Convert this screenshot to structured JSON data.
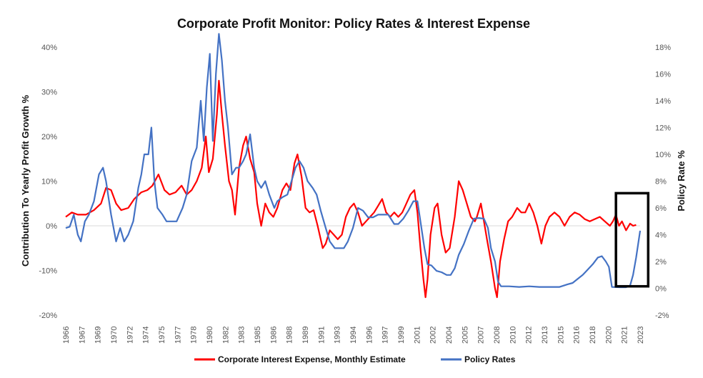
{
  "chart_data": {
    "type": "line",
    "title": "Corporate Profit Monitor: Policy Rates & Interest Expense",
    "ylabel_left": "Contribution To Yearly Profit Growth %",
    "ylabel_right": "Policy Rate %",
    "ylim_left": [
      -20,
      40
    ],
    "ylim_right": [
      -2,
      18
    ],
    "yticks_left": [
      "-20%",
      "-10%",
      "0%",
      "10%",
      "20%",
      "30%",
      "40%"
    ],
    "yticks_left_values": [
      -20,
      -10,
      0,
      10,
      20,
      30,
      40
    ],
    "yticks_right": [
      "-2%",
      "0%",
      "2%",
      "4%",
      "6%",
      "8%",
      "10%",
      "12%",
      "14%",
      "16%",
      "18%"
    ],
    "yticks_right_values": [
      -2,
      0,
      2,
      4,
      6,
      8,
      10,
      12,
      14,
      16,
      18
    ],
    "xlim": [
      1966,
      2023
    ],
    "xtick_labels": [
      "1966",
      "1967",
      "1969",
      "1970",
      "1972",
      "1974",
      "1975",
      "1977",
      "1978",
      "1980",
      "1982",
      "1983",
      "1985",
      "1986",
      "1988",
      "1989",
      "1991",
      "1993",
      "1994",
      "1996",
      "1997",
      "1999",
      "2001",
      "2002",
      "2004",
      "2005",
      "2007",
      "2008",
      "2010",
      "2012",
      "2013",
      "2015",
      "2016",
      "2018",
      "2020",
      "2021",
      "2023"
    ],
    "legend_position": "bottom",
    "grid": false,
    "series": [
      {
        "name": "Corporate Interest Expense, Monthly Estimate",
        "axis": "left",
        "color": "#ff0000",
        "points": [
          [
            1966.0,
            2
          ],
          [
            1966.6,
            3
          ],
          [
            1967.2,
            2.5
          ],
          [
            1968.0,
            2.5
          ],
          [
            1968.8,
            3.5
          ],
          [
            1969.5,
            5
          ],
          [
            1970.0,
            8.5
          ],
          [
            1970.5,
            8
          ],
          [
            1971.0,
            5
          ],
          [
            1971.5,
            3.5
          ],
          [
            1972.2,
            4
          ],
          [
            1972.8,
            6
          ],
          [
            1973.5,
            7.5
          ],
          [
            1974.1,
            8
          ],
          [
            1974.6,
            9
          ],
          [
            1975.2,
            11.5
          ],
          [
            1975.8,
            8
          ],
          [
            1976.3,
            7
          ],
          [
            1976.9,
            7.5
          ],
          [
            1977.5,
            9
          ],
          [
            1978.0,
            7
          ],
          [
            1978.5,
            8
          ],
          [
            1979.0,
            10
          ],
          [
            1979.5,
            13
          ],
          [
            1979.9,
            20
          ],
          [
            1980.2,
            12
          ],
          [
            1980.6,
            15
          ],
          [
            1981.0,
            25
          ],
          [
            1981.2,
            32.5
          ],
          [
            1981.5,
            25
          ],
          [
            1981.8,
            18
          ],
          [
            1982.2,
            10
          ],
          [
            1982.5,
            8
          ],
          [
            1982.8,
            2.5
          ],
          [
            1983.2,
            13
          ],
          [
            1983.6,
            18
          ],
          [
            1983.9,
            20
          ],
          [
            1984.3,
            15
          ],
          [
            1984.7,
            12
          ],
          [
            1985.0,
            5
          ],
          [
            1985.4,
            0
          ],
          [
            1985.8,
            5
          ],
          [
            1986.2,
            3
          ],
          [
            1986.6,
            2
          ],
          [
            1987.0,
            4
          ],
          [
            1987.5,
            8
          ],
          [
            1987.9,
            9.5
          ],
          [
            1988.3,
            8
          ],
          [
            1988.7,
            14
          ],
          [
            1989.0,
            16
          ],
          [
            1989.4,
            11
          ],
          [
            1989.8,
            4
          ],
          [
            1990.2,
            3
          ],
          [
            1990.6,
            3.5
          ],
          [
            1991.0,
            0
          ],
          [
            1991.5,
            -5
          ],
          [
            1991.8,
            -4
          ],
          [
            1992.2,
            -1
          ],
          [
            1992.6,
            -2
          ],
          [
            1993.0,
            -3
          ],
          [
            1993.4,
            -2
          ],
          [
            1993.8,
            2
          ],
          [
            1994.2,
            4
          ],
          [
            1994.6,
            5
          ],
          [
            1995.0,
            3
          ],
          [
            1995.4,
            0
          ],
          [
            1995.8,
            1
          ],
          [
            1996.2,
            2
          ],
          [
            1996.6,
            3
          ],
          [
            1997.0,
            4.5
          ],
          [
            1997.4,
            6
          ],
          [
            1997.8,
            3
          ],
          [
            1998.2,
            2
          ],
          [
            1998.6,
            3
          ],
          [
            1999.0,
            2
          ],
          [
            1999.4,
            3
          ],
          [
            1999.8,
            5
          ],
          [
            2000.2,
            7
          ],
          [
            2000.6,
            8
          ],
          [
            2000.9,
            3
          ],
          [
            2001.2,
            -5
          ],
          [
            2001.5,
            -12
          ],
          [
            2001.7,
            -16
          ],
          [
            2001.9,
            -12
          ],
          [
            2002.2,
            -2
          ],
          [
            2002.6,
            4
          ],
          [
            2002.9,
            5
          ],
          [
            2003.3,
            -2
          ],
          [
            2003.7,
            -6
          ],
          [
            2004.1,
            -5
          ],
          [
            2004.6,
            2
          ],
          [
            2005.0,
            10
          ],
          [
            2005.4,
            8
          ],
          [
            2005.8,
            5
          ],
          [
            2006.2,
            2
          ],
          [
            2006.6,
            1
          ],
          [
            2006.8,
            2
          ],
          [
            2007.2,
            5
          ],
          [
            2007.5,
            1
          ],
          [
            2007.8,
            -3
          ],
          [
            2008.2,
            -8
          ],
          [
            2008.6,
            -14
          ],
          [
            2008.8,
            -16
          ],
          [
            2009.1,
            -8
          ],
          [
            2009.5,
            -3
          ],
          [
            2009.9,
            1
          ],
          [
            2010.3,
            2
          ],
          [
            2010.8,
            4
          ],
          [
            2011.2,
            3
          ],
          [
            2011.6,
            3
          ],
          [
            2012.0,
            5
          ],
          [
            2012.4,
            3
          ],
          [
            2012.8,
            0
          ],
          [
            2013.2,
            -4
          ],
          [
            2013.6,
            0
          ],
          [
            2014.0,
            2
          ],
          [
            2014.5,
            3
          ],
          [
            2015.0,
            2
          ],
          [
            2015.5,
            0
          ],
          [
            2016.0,
            2
          ],
          [
            2016.5,
            3
          ],
          [
            2017.0,
            2.5
          ],
          [
            2017.5,
            1.5
          ],
          [
            2018.0,
            1
          ],
          [
            2018.5,
            1.5
          ],
          [
            2019.0,
            2
          ],
          [
            2019.5,
            1
          ],
          [
            2020.0,
            0
          ],
          [
            2020.3,
            1
          ],
          [
            2020.6,
            2.5
          ],
          [
            2020.9,
            0
          ],
          [
            2021.2,
            1
          ],
          [
            2021.6,
            -1
          ],
          [
            2022.0,
            0.5
          ],
          [
            2022.3,
            0
          ],
          [
            2022.6,
            0.2
          ]
        ]
      },
      {
        "name": "Policy Rates",
        "axis": "right",
        "color": "#4472c4",
        "points": [
          [
            1966.0,
            4.5
          ],
          [
            1966.4,
            4.6
          ],
          [
            1966.8,
            5.5
          ],
          [
            1967.2,
            4
          ],
          [
            1967.5,
            3.5
          ],
          [
            1967.9,
            5
          ],
          [
            1968.3,
            5.5
          ],
          [
            1968.8,
            6.5
          ],
          [
            1969.3,
            8.5
          ],
          [
            1969.7,
            9
          ],
          [
            1970.0,
            8
          ],
          [
            1970.5,
            5.5
          ],
          [
            1971.0,
            3.5
          ],
          [
            1971.4,
            4.5
          ],
          [
            1971.8,
            3.5
          ],
          [
            1972.2,
            4
          ],
          [
            1972.7,
            5
          ],
          [
            1973.2,
            7.5
          ],
          [
            1973.5,
            8.5
          ],
          [
            1973.8,
            10
          ],
          [
            1974.2,
            10
          ],
          [
            1974.5,
            12
          ],
          [
            1974.8,
            8
          ],
          [
            1975.1,
            6
          ],
          [
            1975.6,
            5.5
          ],
          [
            1976.0,
            5
          ],
          [
            1976.5,
            5
          ],
          [
            1977.0,
            5
          ],
          [
            1977.6,
            6
          ],
          [
            1978.0,
            7
          ],
          [
            1978.5,
            9.5
          ],
          [
            1979.0,
            10.5
          ],
          [
            1979.4,
            14
          ],
          [
            1979.7,
            11
          ],
          [
            1980.0,
            15
          ],
          [
            1980.3,
            17.5
          ],
          [
            1980.6,
            11
          ],
          [
            1980.9,
            16
          ],
          [
            1981.2,
            19
          ],
          [
            1981.5,
            17
          ],
          [
            1981.8,
            14
          ],
          [
            1982.1,
            12
          ],
          [
            1982.5,
            8.5
          ],
          [
            1982.9,
            9
          ],
          [
            1983.2,
            9
          ],
          [
            1983.6,
            9.5
          ],
          [
            1983.9,
            10
          ],
          [
            1984.3,
            11.5
          ],
          [
            1984.7,
            9
          ],
          [
            1985.0,
            8
          ],
          [
            1985.4,
            7.5
          ],
          [
            1985.8,
            8
          ],
          [
            1986.2,
            7
          ],
          [
            1986.7,
            6
          ],
          [
            1987.0,
            6.5
          ],
          [
            1987.5,
            6.8
          ],
          [
            1988.0,
            7
          ],
          [
            1988.4,
            8
          ],
          [
            1988.8,
            9
          ],
          [
            1989.2,
            9.5
          ],
          [
            1989.6,
            9
          ],
          [
            1990.0,
            8
          ],
          [
            1990.5,
            7.5
          ],
          [
            1990.9,
            7
          ],
          [
            1991.3,
            5.8
          ],
          [
            1991.8,
            4.5
          ],
          [
            1992.2,
            3.5
          ],
          [
            1992.7,
            3
          ],
          [
            1993.2,
            3
          ],
          [
            1993.6,
            3
          ],
          [
            1994.0,
            3.5
          ],
          [
            1994.5,
            4.5
          ],
          [
            1995.0,
            6
          ],
          [
            1995.5,
            5.8
          ],
          [
            1996.0,
            5.3
          ],
          [
            1996.5,
            5.3
          ],
          [
            1997.0,
            5.5
          ],
          [
            1997.5,
            5.5
          ],
          [
            1998.0,
            5.5
          ],
          [
            1998.6,
            4.8
          ],
          [
            1999.0,
            4.8
          ],
          [
            1999.5,
            5.2
          ],
          [
            2000.0,
            5.8
          ],
          [
            2000.5,
            6.5
          ],
          [
            2000.9,
            6.5
          ],
          [
            2001.2,
            5
          ],
          [
            2001.6,
            3
          ],
          [
            2001.9,
            1.8
          ],
          [
            2002.3,
            1.7
          ],
          [
            2002.8,
            1.3
          ],
          [
            2003.3,
            1.2
          ],
          [
            2003.8,
            1
          ],
          [
            2004.2,
            1
          ],
          [
            2004.6,
            1.5
          ],
          [
            2005.0,
            2.5
          ],
          [
            2005.5,
            3.3
          ],
          [
            2006.0,
            4.3
          ],
          [
            2006.5,
            5.2
          ],
          [
            2007.0,
            5.25
          ],
          [
            2007.5,
            5.2
          ],
          [
            2007.9,
            4.5
          ],
          [
            2008.2,
            3
          ],
          [
            2008.6,
            2
          ],
          [
            2008.9,
            0.5
          ],
          [
            2009.2,
            0.15
          ],
          [
            2010.0,
            0.15
          ],
          [
            2011.0,
            0.1
          ],
          [
            2012.0,
            0.15
          ],
          [
            2013.0,
            0.1
          ],
          [
            2014.0,
            0.1
          ],
          [
            2015.0,
            0.1
          ],
          [
            2015.8,
            0.3
          ],
          [
            2016.3,
            0.4
          ],
          [
            2016.8,
            0.7
          ],
          [
            2017.3,
            1
          ],
          [
            2017.8,
            1.4
          ],
          [
            2018.3,
            1.8
          ],
          [
            2018.8,
            2.3
          ],
          [
            2019.2,
            2.4
          ],
          [
            2019.6,
            2
          ],
          [
            2019.9,
            1.6
          ],
          [
            2020.2,
            0.1
          ],
          [
            2021.0,
            0.08
          ],
          [
            2021.6,
            0.08
          ],
          [
            2022.0,
            0.2
          ],
          [
            2022.3,
            1
          ],
          [
            2022.6,
            2.3
          ],
          [
            2022.9,
            3.8
          ],
          [
            2023.0,
            4.3
          ]
        ]
      }
    ],
    "annotation": {
      "type": "highlight-box",
      "x_range": [
        2020.6,
        2023.8
      ],
      "y_right_range": [
        0.15,
        7.1
      ],
      "color": "#000000"
    }
  }
}
